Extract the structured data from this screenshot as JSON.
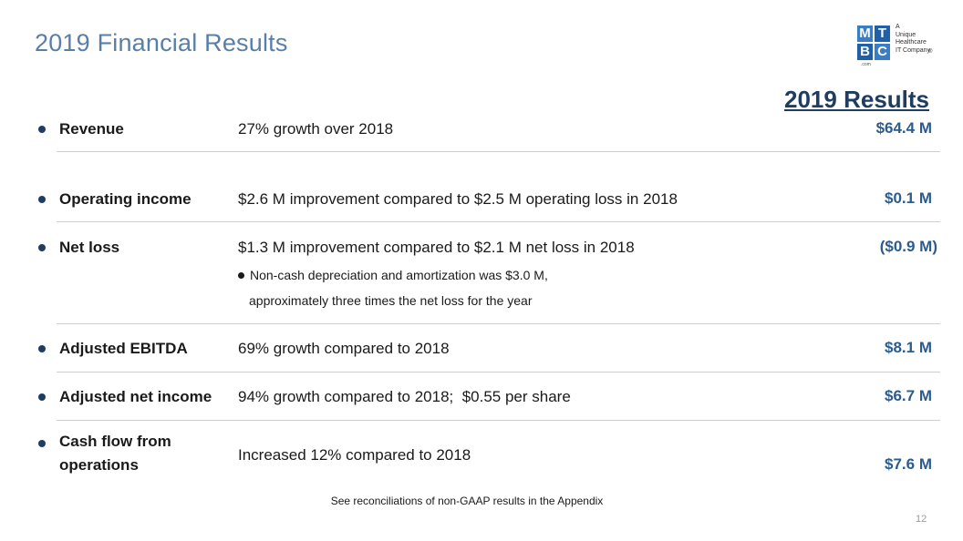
{
  "title": "2019 Financial Results",
  "logo": {
    "letters": [
      "M",
      "T",
      "B",
      "C"
    ],
    "colors": [
      "#3a7dc4",
      "#2060a8",
      "#2060a8",
      "#3a7dc4"
    ],
    "tagline": [
      "A",
      "Unique",
      "Healthcare",
      "IT Company"
    ],
    "registered": "®",
    "dotcom": ".com"
  },
  "results_heading": "2019 Results",
  "rows": [
    {
      "label": "Revenue",
      "desc": "27% growth over 2018",
      "value": "$64.4 M"
    },
    {
      "label": "Operating income",
      "desc": "$2.6 M improvement compared to $2.5 M operating loss in 2018",
      "value": "$0.1 M"
    },
    {
      "label": "Net loss",
      "desc": "$1.3 M improvement compared to $2.1 M net loss in 2018",
      "value": "($0.9 M)",
      "sub_line1": "Non-cash depreciation and amortization was $3.0 M,",
      "sub_line2": "approximately three times the net loss for the year"
    },
    {
      "label": "Adjusted EBITDA",
      "desc": "69% growth compared to 2018",
      "value": "$8.1 M"
    },
    {
      "label": "Adjusted net income",
      "desc": "94% growth compared to 2018;  $0.55 per share",
      "value": "$6.7 M"
    },
    {
      "label_line1": "Cash flow from",
      "label_line2": "operations",
      "desc": "Increased 12% compared to 2018",
      "value": "$7.6 M"
    }
  ],
  "footnote": "See reconciliations of non-GAAP results in the Appendix",
  "page_number": "12"
}
